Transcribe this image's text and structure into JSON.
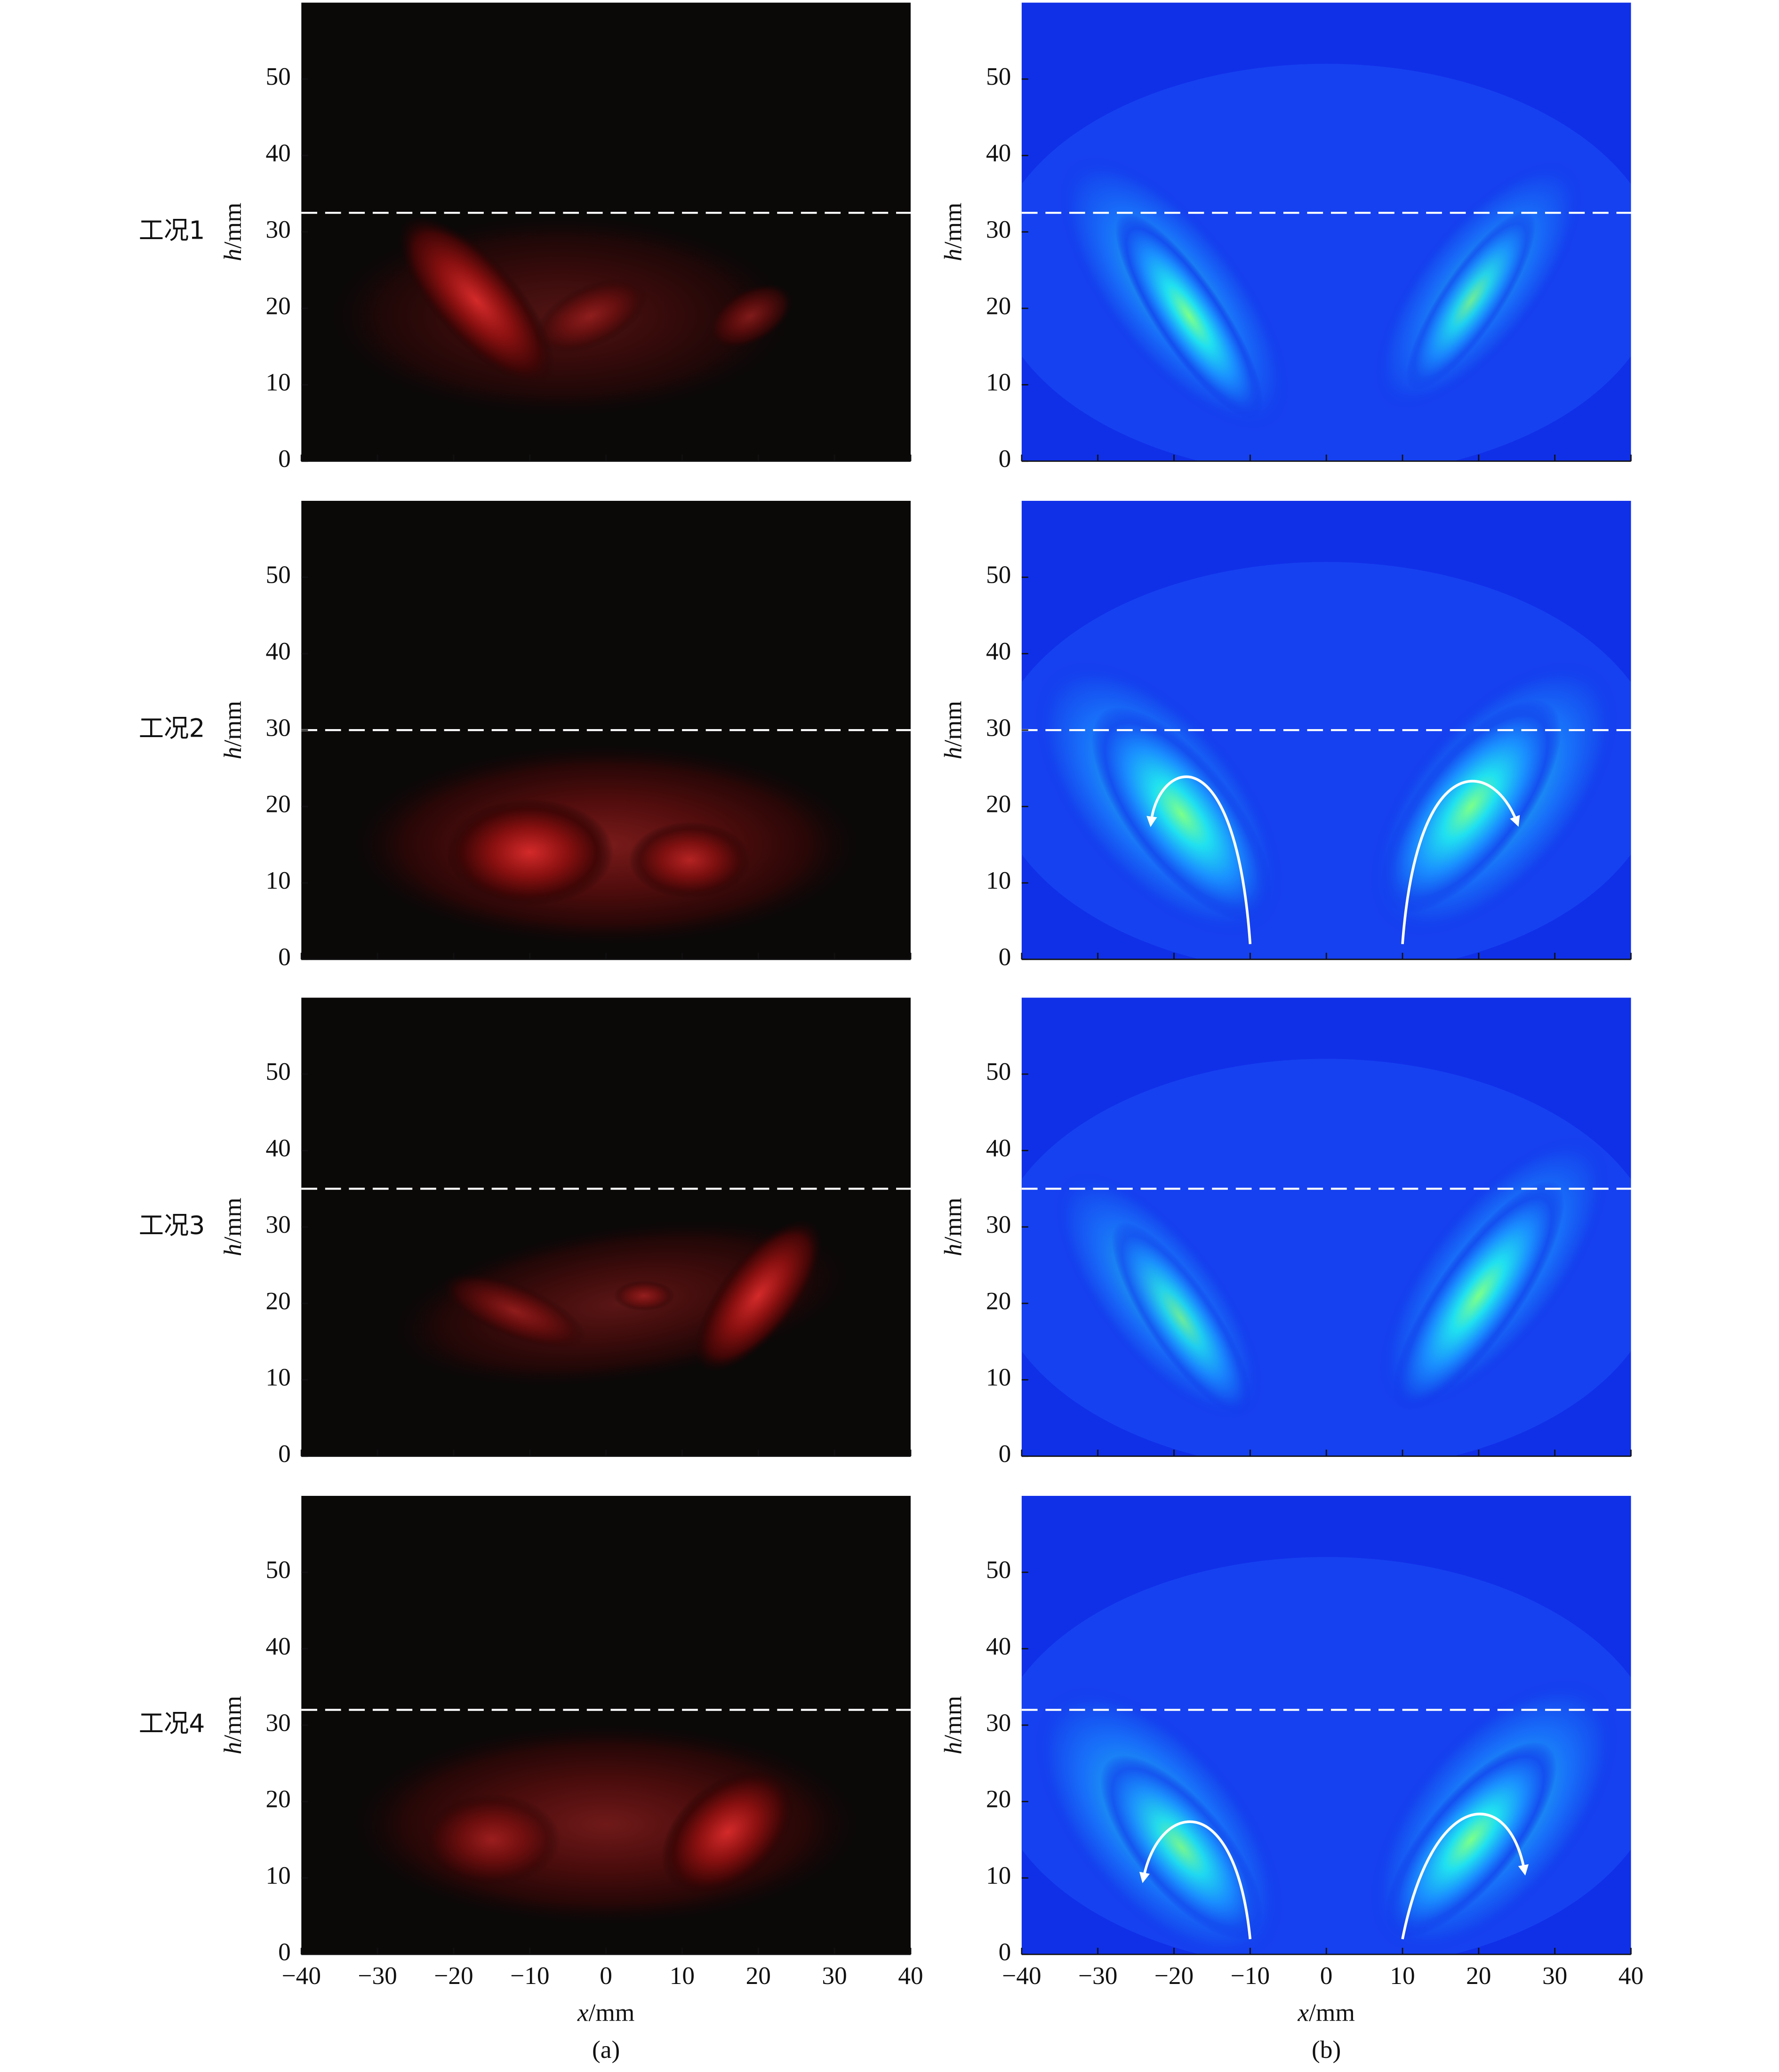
{
  "chart_data": [
    {
      "type": "heatmap",
      "colormap": "red",
      "row_label": "工况1",
      "ylabel": "h/mm",
      "xlim": [
        -40,
        40
      ],
      "ylim": [
        0,
        60
      ],
      "xticks": [
        -40,
        -30,
        -20,
        -10,
        0,
        10,
        20,
        30,
        40
      ],
      "yticks": [
        0,
        10,
        20,
        30,
        40,
        50
      ],
      "ref_line": 32.5
    },
    {
      "type": "heatmap",
      "colormap": "jet",
      "ylabel": "h/mm",
      "xlim": [
        -40,
        40
      ],
      "ylim": [
        0,
        60
      ],
      "xticks": [
        -40,
        -30,
        -20,
        -10,
        0,
        10,
        20,
        30,
        40
      ],
      "yticks": [
        0,
        10,
        20,
        30,
        40,
        50
      ],
      "ref_line": 32.5
    },
    {
      "type": "heatmap",
      "colormap": "red",
      "row_label": "工况2",
      "ylabel": "h/mm",
      "xlim": [
        -40,
        40
      ],
      "ylim": [
        0,
        60
      ],
      "xticks": [
        -40,
        -30,
        -20,
        -10,
        0,
        10,
        20,
        30,
        40
      ],
      "yticks": [
        0,
        10,
        20,
        30,
        40,
        50
      ],
      "ref_line": 30
    },
    {
      "type": "heatmap",
      "colormap": "jet",
      "ylabel": "h/mm",
      "xlim": [
        -40,
        40
      ],
      "ylim": [
        0,
        60
      ],
      "xticks": [
        -40,
        -30,
        -20,
        -10,
        0,
        10,
        20,
        30,
        40
      ],
      "yticks": [
        0,
        10,
        20,
        30,
        40,
        50
      ],
      "ref_line": 30
    },
    {
      "type": "heatmap",
      "colormap": "red",
      "row_label": "工况3",
      "ylabel": "h/mm",
      "xlim": [
        -40,
        40
      ],
      "ylim": [
        0,
        60
      ],
      "xticks": [
        -40,
        -30,
        -20,
        -10,
        0,
        10,
        20,
        30,
        40
      ],
      "yticks": [
        0,
        10,
        20,
        30,
        40,
        50
      ],
      "ref_line": 35
    },
    {
      "type": "heatmap",
      "colormap": "jet",
      "ylabel": "h/mm",
      "xlim": [
        -40,
        40
      ],
      "ylim": [
        0,
        60
      ],
      "xticks": [
        -40,
        -30,
        -20,
        -10,
        0,
        10,
        20,
        30,
        40
      ],
      "yticks": [
        0,
        10,
        20,
        30,
        40,
        50
      ],
      "ref_line": 35
    },
    {
      "type": "heatmap",
      "colormap": "red",
      "row_label": "工况4",
      "ylabel": "h/mm",
      "xlabel": "x/mm",
      "panel_label": "(a)",
      "xlim": [
        -40,
        40
      ],
      "ylim": [
        0,
        60
      ],
      "xticks": [
        {
          "value": -40,
          "label": "−40"
        },
        {
          "value": -30,
          "label": "−30"
        },
        {
          "value": -20,
          "label": "−20"
        },
        {
          "value": -10,
          "label": "−10"
        },
        0,
        10,
        20,
        30,
        40
      ],
      "yticks": [
        0,
        10,
        20,
        30,
        40,
        50
      ],
      "ref_line": 32
    },
    {
      "type": "heatmap",
      "colormap": "jet",
      "ylabel": "h/mm",
      "xlabel": "x/mm",
      "panel_label": "(b)",
      "xlim": [
        -40,
        40
      ],
      "ylim": [
        0,
        60
      ],
      "xticks": [
        {
          "value": -40,
          "label": "−40"
        },
        {
          "value": -30,
          "label": "−30"
        },
        {
          "value": -20,
          "label": "−20"
        },
        {
          "value": -10,
          "label": "−10"
        },
        0,
        10,
        20,
        30,
        40
      ],
      "yticks": [
        0,
        10,
        20,
        30,
        40,
        50
      ],
      "ref_line": 32
    }
  ]
}
